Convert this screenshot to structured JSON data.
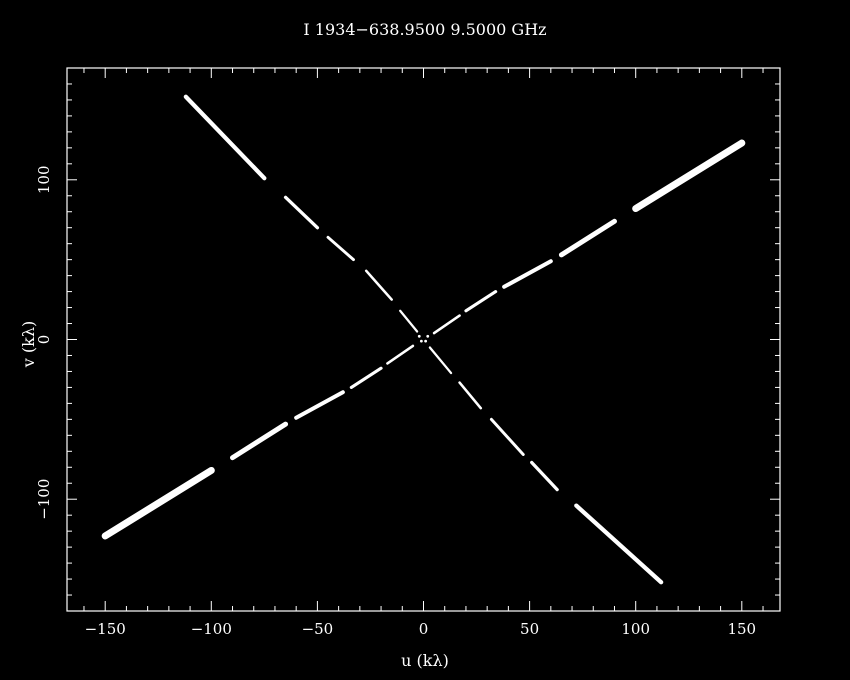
{
  "chart_data": {
    "type": "scatter",
    "title": "I 1934−638.9500  9.5000  GHz",
    "xlabel": "u (kλ)",
    "ylabel": "v (kλ)",
    "xlim": [
      -168,
      168
    ],
    "ylim": [
      -170,
      170
    ],
    "xticks": [
      -150,
      -100,
      -50,
      0,
      50,
      100,
      150
    ],
    "xtick_labels": [
      "−150",
      "−100",
      "−50",
      "0",
      "50",
      "100",
      "150"
    ],
    "yticks": [
      -100,
      0,
      100
    ],
    "ytick_labels": [
      "−100",
      "0",
      "100"
    ],
    "x_minor_step": 10,
    "y_minor_step": 10,
    "grid": false,
    "colors": {
      "background": "#000000",
      "foreground": "#ffffff",
      "points": "#ffffff"
    },
    "series": [
      {
        "segments": [
          {
            "u": [
              -112,
              -75
            ],
            "v": [
              152,
              101
            ]
          },
          {
            "u": [
              -65,
              -50
            ],
            "v": [
              89,
              70
            ]
          },
          {
            "u": [
              -45,
              -33
            ],
            "v": [
              64,
              50
            ]
          },
          {
            "u": [
              -27,
              -15
            ],
            "v": [
              43,
              25
            ]
          },
          {
            "u": [
              -11,
              -3
            ],
            "v": [
              18,
              5
            ]
          },
          {
            "u": [
              3,
              13
            ],
            "v": [
              -5,
              -21
            ]
          },
          {
            "u": [
              17,
              27
            ],
            "v": [
              -27,
              -43
            ]
          },
          {
            "u": [
              32,
              47
            ],
            "v": [
              -50,
              -72
            ]
          },
          {
            "u": [
              51,
              63
            ],
            "v": [
              -77,
              -94
            ]
          },
          {
            "u": [
              72,
              112
            ],
            "v": [
              -104,
              -152
            ]
          }
        ],
        "width": [
          2,
          5
        ]
      },
      {
        "segments": [
          {
            "u": [
              -150,
              -100
            ],
            "v": [
              -123,
              -82
            ]
          },
          {
            "u": [
              -90,
              -65
            ],
            "v": [
              -74,
              -53
            ]
          },
          {
            "u": [
              -60,
              -38
            ],
            "v": [
              -49,
              -33
            ]
          },
          {
            "u": [
              -34,
              -20
            ],
            "v": [
              -30,
              -18
            ]
          },
          {
            "u": [
              -17,
              -5
            ],
            "v": [
              -15,
              -4
            ]
          },
          {
            "u": [
              5,
              17
            ],
            "v": [
              4,
              15
            ]
          },
          {
            "u": [
              20,
              34
            ],
            "v": [
              18,
              30
            ]
          },
          {
            "u": [
              38,
              60
            ],
            "v": [
              33,
              49
            ]
          },
          {
            "u": [
              65,
              90
            ],
            "v": [
              53,
              74
            ]
          },
          {
            "u": [
              100,
              150
            ],
            "v": [
              82,
              123
            ]
          }
        ],
        "width": [
          2,
          7
        ]
      },
      {
        "points": [
          [
            -2,
            2
          ],
          [
            2,
            2
          ],
          [
            -1,
            -1
          ],
          [
            1,
            -1
          ]
        ]
      }
    ]
  }
}
